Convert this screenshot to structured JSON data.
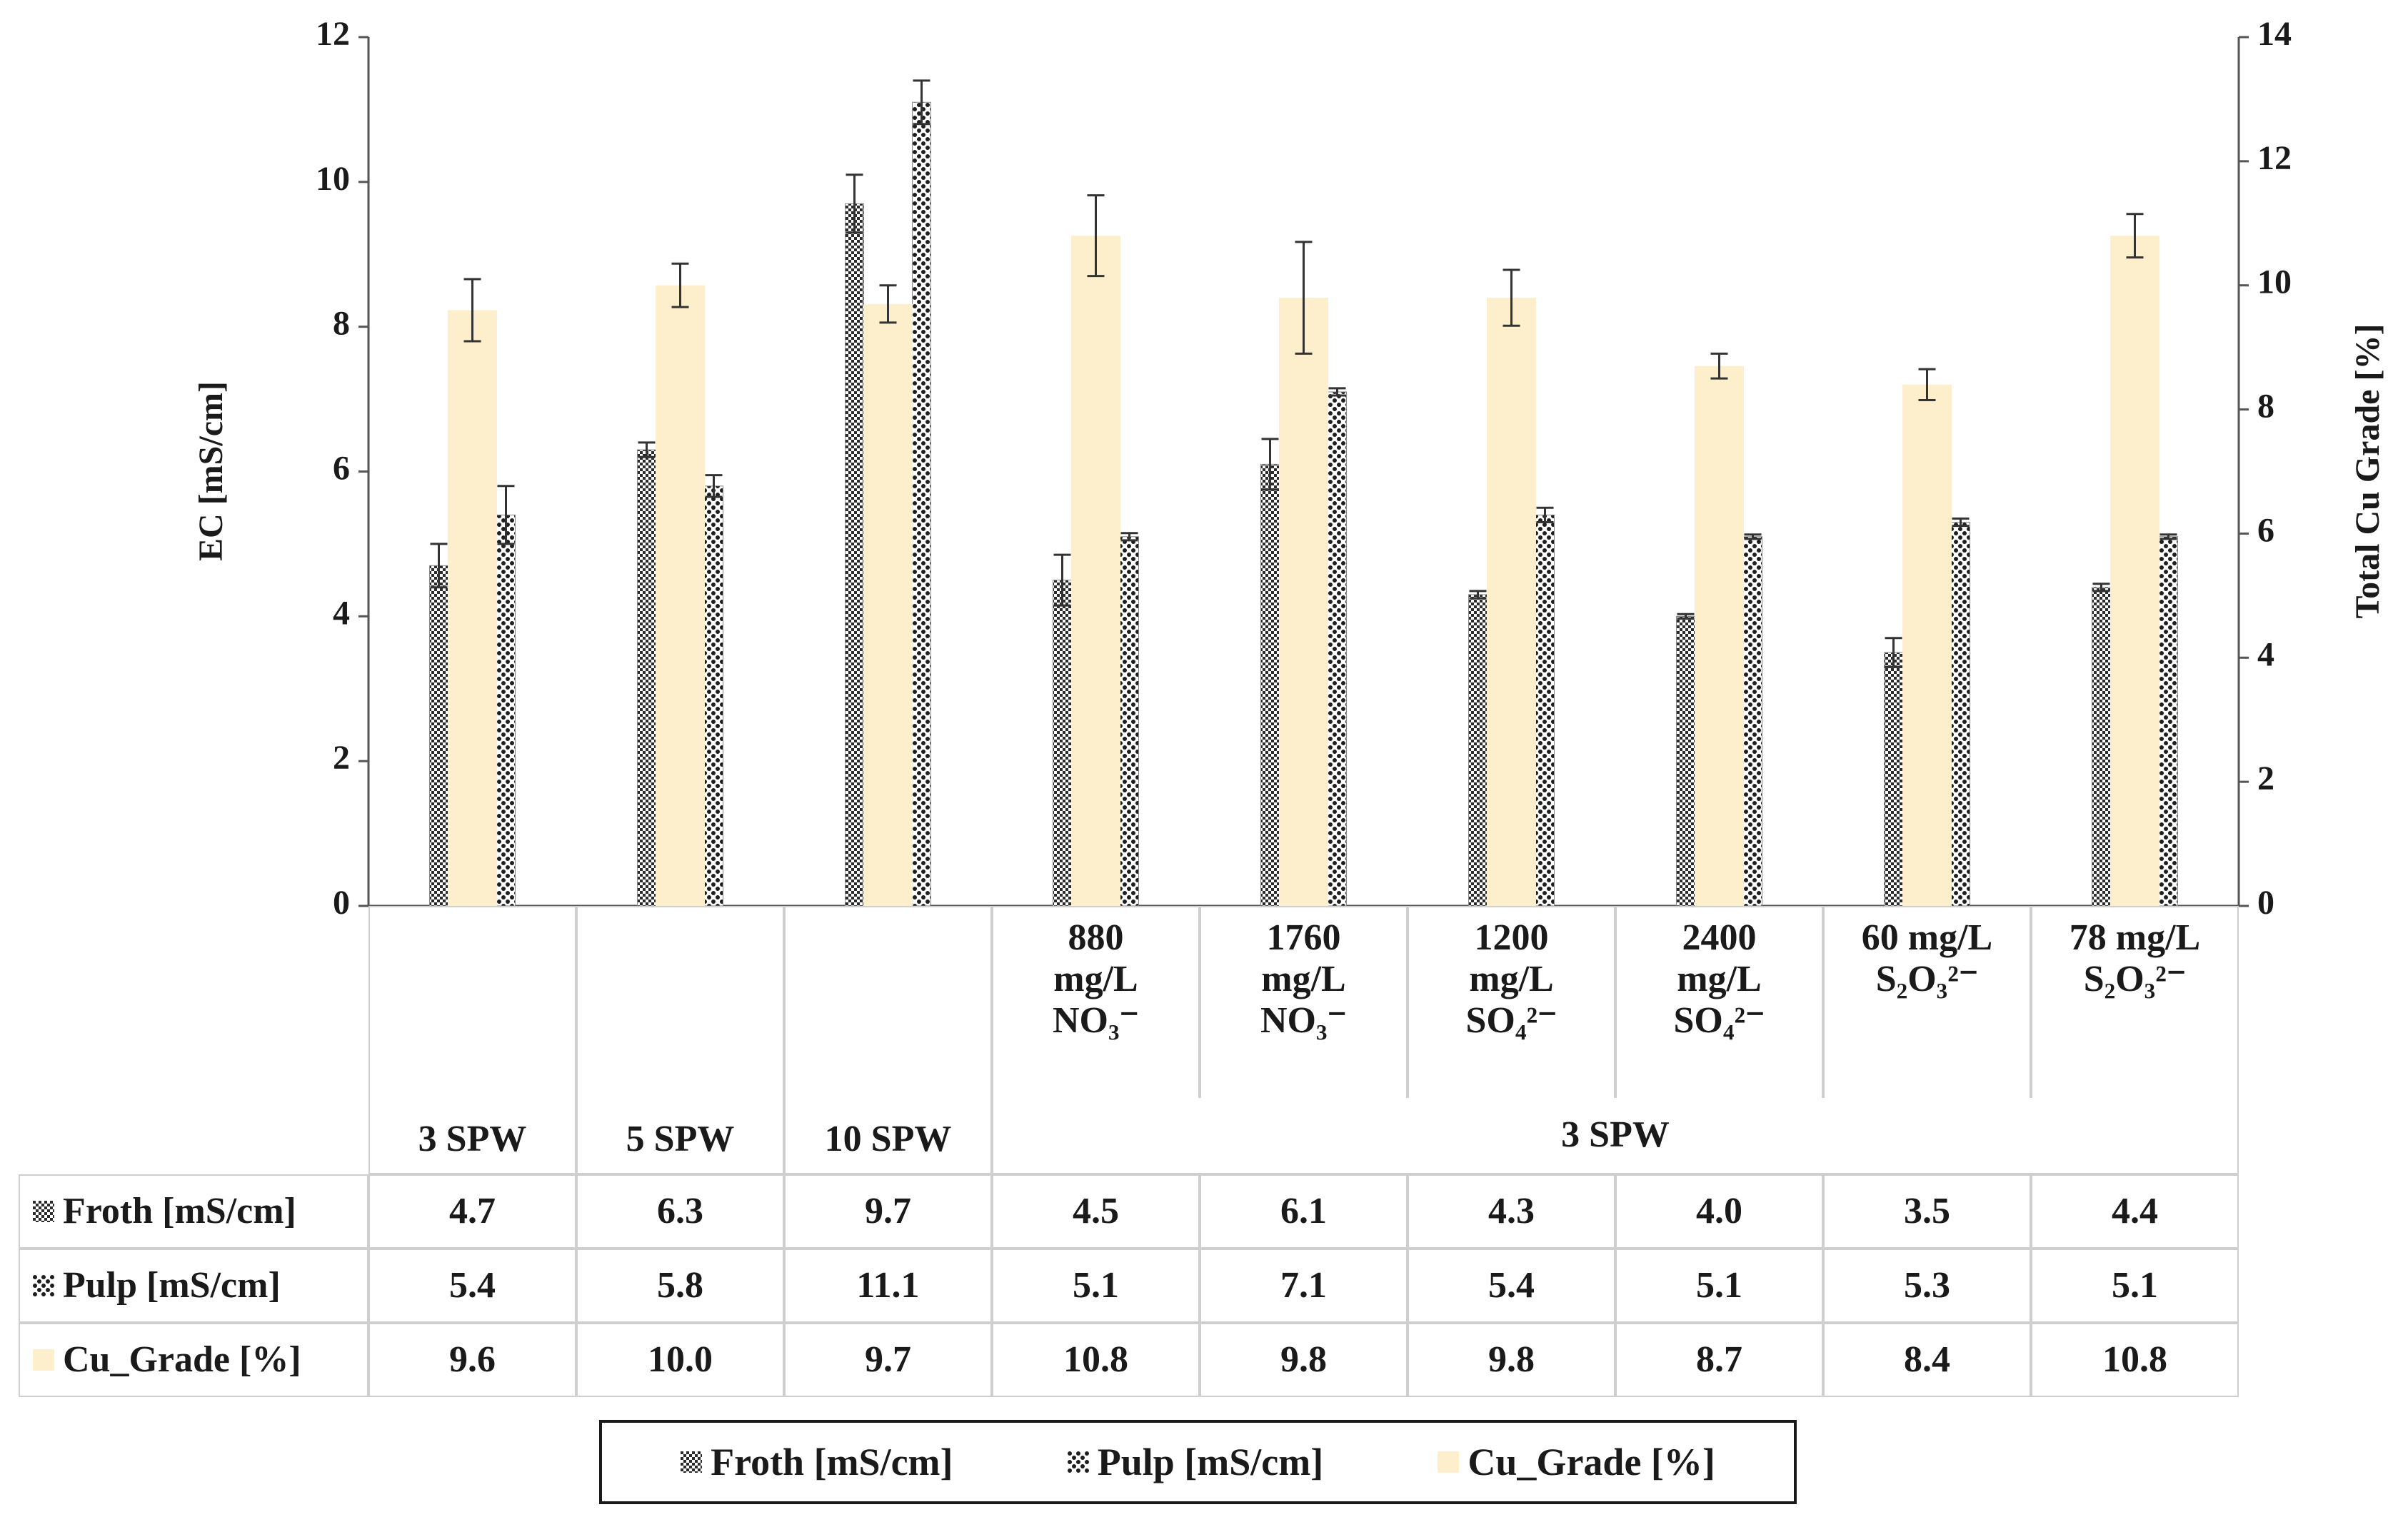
{
  "chart_data": {
    "type": "bar",
    "y_title": "EC [mS/cm]",
    "y2_title": "Total Cu Grade [%]",
    "categories": [
      "3 SPW",
      "5 SPW",
      "10 SPW",
      "880 mg/L NO₃⁻",
      "1760 mg/L NO₃⁻",
      "1200 mg/L SO₄²⁻",
      "2400 mg/L SO₄²⁻",
      "60 mg/L S₂O₃²⁻",
      "78 mg/L S₂O₃²⁻"
    ],
    "category_group": "3 SPW",
    "ylim": [
      0,
      12
    ],
    "yticks": [
      0,
      2,
      4,
      6,
      8,
      10,
      12
    ],
    "y2lim": [
      0,
      14
    ],
    "y2ticks": [
      0,
      2,
      4,
      6,
      8,
      10,
      12,
      14
    ],
    "series": [
      {
        "name": "Froth [mS/cm]",
        "color": "#2b2b2b",
        "pattern": "checker",
        "values": [
          4.7,
          6.3,
          9.7,
          4.5,
          6.1,
          4.3,
          4.0,
          3.5,
          4.4
        ],
        "value_labels": [
          "4.7",
          "6.3",
          "9.7",
          "4.5",
          "6.1",
          "4.3",
          "4.0",
          "3.5",
          "4.4"
        ],
        "errors": [
          0.3,
          0.1,
          0.4,
          0.35,
          0.35,
          0.05,
          0.03,
          0.2,
          0.05
        ]
      },
      {
        "name": "Pulp [mS/cm]",
        "color": "#1e1e1e",
        "pattern": "dots",
        "values": [
          5.4,
          5.8,
          11.1,
          5.1,
          7.1,
          5.4,
          5.1,
          5.3,
          5.1
        ],
        "value_labels": [
          "5.4",
          "5.8",
          "11.1",
          "5.1",
          "7.1",
          "5.4",
          "5.1",
          "5.3",
          "5.1"
        ],
        "errors": [
          0.4,
          0.15,
          0.3,
          0.05,
          0.05,
          0.1,
          0.03,
          0.05,
          0.03
        ]
      },
      {
        "name": "Cu_Grade [%]",
        "color": "#fdefcc",
        "pattern": "solid",
        "axis": "y2",
        "values": [
          9.6,
          10.0,
          9.7,
          10.8,
          9.8,
          9.8,
          8.7,
          8.4,
          10.8
        ],
        "value_labels": [
          "9.6",
          "10.0",
          "9.7",
          "10.8",
          "9.8",
          "9.8",
          "8.7",
          "8.4",
          "10.8"
        ],
        "errors": [
          0.5,
          0.35,
          0.3,
          0.65,
          0.9,
          0.45,
          0.2,
          0.25,
          0.35
        ]
      }
    ],
    "error_bars": true,
    "data_table": true,
    "legend": "bottom"
  }
}
